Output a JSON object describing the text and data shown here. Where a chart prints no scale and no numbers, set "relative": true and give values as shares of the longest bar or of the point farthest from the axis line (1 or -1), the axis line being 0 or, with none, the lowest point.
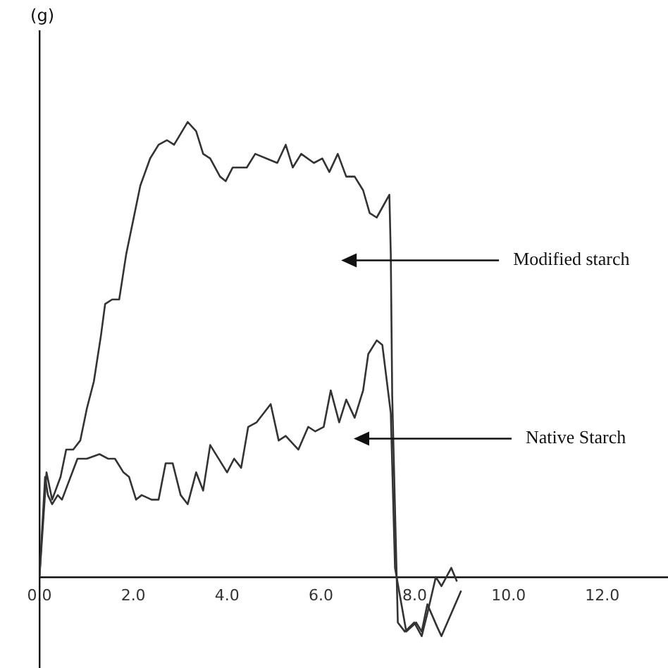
{
  "chart_data": {
    "type": "line",
    "relative": true,
    "xlim": [
      0,
      13.4
    ],
    "xticks": [
      {
        "value": 0,
        "label": "0.0"
      },
      {
        "value": 2,
        "label": "2.0"
      },
      {
        "value": 4,
        "label": "4.0"
      },
      {
        "value": 6,
        "label": "6.0"
      },
      {
        "value": 8,
        "label": "8.0"
      },
      {
        "value": 10,
        "label": "10.0"
      },
      {
        "value": 12,
        "label": "12.0"
      }
    ],
    "grid": false,
    "legend": false,
    "marker": "none",
    "line_style": "solid",
    "series": [
      {
        "color": "#333333",
        "x": [
          0,
          0.15,
          0.27,
          0.45,
          0.57,
          0.72,
          0.87,
          1.01,
          1.16,
          1.31,
          1.4,
          1.55,
          1.7,
          1.85,
          1.97,
          2.15,
          2.36,
          2.54,
          2.72,
          2.87,
          3.16,
          3.34,
          3.49,
          3.64,
          3.85,
          3.97,
          4.12,
          4.42,
          4.6,
          5.07,
          5.25,
          5.4,
          5.58,
          5.85,
          6.03,
          6.18,
          6.36,
          6.54,
          6.72,
          6.9,
          7.04,
          7.19,
          7.46,
          7.49,
          7.52,
          7.64,
          7.79,
          7.99,
          8.15,
          8.27,
          8.45,
          8.57,
          8.78,
          8.9
        ],
        "values": [
          0,
          0.23,
          0.17,
          0.22,
          0.28,
          0.28,
          0.3,
          0.37,
          0.43,
          0.53,
          0.6,
          0.61,
          0.61,
          0.71,
          0.77,
          0.86,
          0.92,
          0.95,
          0.96,
          0.95,
          1,
          0.98,
          0.93,
          0.92,
          0.88,
          0.87,
          0.9,
          0.9,
          0.93,
          0.91,
          0.95,
          0.9,
          0.93,
          0.91,
          0.92,
          0.89,
          0.93,
          0.88,
          0.88,
          0.85,
          0.8,
          0.79,
          0.84,
          0.71,
          0.4,
          -0.1,
          -0.12,
          -0.1,
          -0.13,
          -0.08,
          0,
          -0.02,
          0.02,
          -0.01
        ]
      },
      {
        "color": "#333333",
        "x": [
          0,
          0.12,
          0.18,
          0.27,
          0.39,
          0.48,
          0.81,
          1.01,
          1.28,
          1.46,
          1.61,
          1.79,
          1.91,
          2.06,
          2.18,
          2.39,
          2.54,
          2.69,
          2.84,
          3.01,
          3.16,
          3.34,
          3.49,
          3.64,
          4,
          4.15,
          4.3,
          4.45,
          4.63,
          4.93,
          5.1,
          5.25,
          5.52,
          5.73,
          5.88,
          6.06,
          6.21,
          6.39,
          6.54,
          6.72,
          6.9,
          7.01,
          7.19,
          7.31,
          7.49,
          7.58,
          7.82,
          8.03,
          8.15,
          8.27,
          8.48,
          8.57,
          8.99
        ],
        "values": [
          0,
          0.22,
          0.18,
          0.16,
          0.18,
          0.17,
          0.26,
          0.26,
          0.27,
          0.26,
          0.26,
          0.23,
          0.22,
          0.17,
          0.18,
          0.17,
          0.17,
          0.25,
          0.25,
          0.18,
          0.16,
          0.23,
          0.19,
          0.29,
          0.23,
          0.26,
          0.24,
          0.33,
          0.34,
          0.38,
          0.3,
          0.31,
          0.28,
          0.33,
          0.32,
          0.33,
          0.41,
          0.34,
          0.39,
          0.35,
          0.41,
          0.49,
          0.52,
          0.51,
          0.36,
          0.02,
          -0.12,
          -0.1,
          -0.12,
          -0.06,
          -0.11,
          -0.13,
          -0.03
        ]
      }
    ],
    "annotations": [
      "(g)",
      "Modified starch",
      "Native Starch"
    ]
  }
}
